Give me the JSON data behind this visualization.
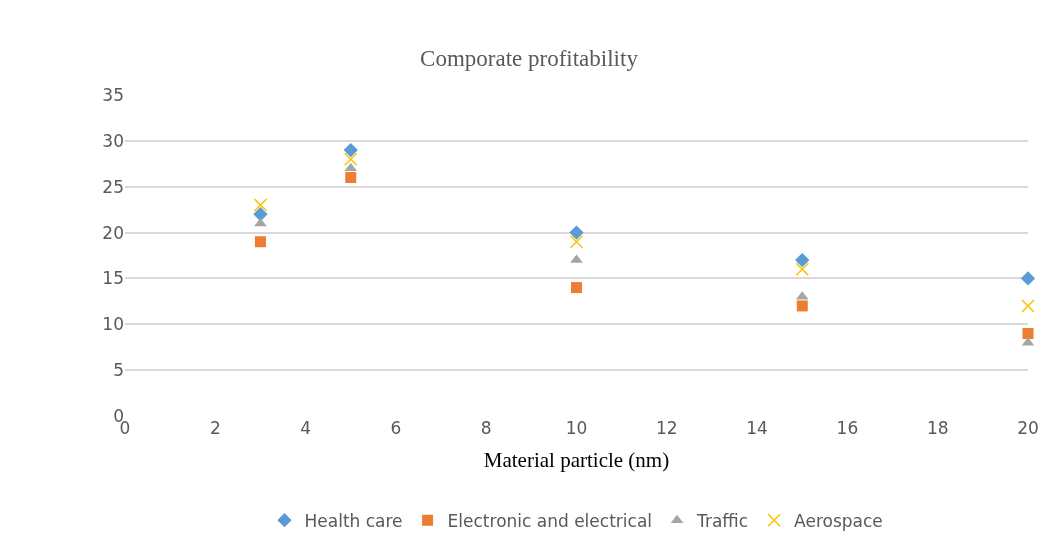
{
  "chart_data": {
    "type": "scatter",
    "title": "Comporate profitability",
    "xlabel": "Material particle (nm)",
    "x": [
      3,
      5,
      10,
      15,
      20
    ],
    "series": [
      {
        "name": "Health care",
        "color": "#5b9bd5",
        "marker": "diamond",
        "values": [
          22,
          29,
          20,
          17,
          15
        ]
      },
      {
        "name": "Electronic and electrical",
        "color": "#ed7d31",
        "marker": "square",
        "values": [
          19,
          26,
          14,
          12,
          9
        ]
      },
      {
        "name": "Traffic",
        "color": "#a5a5a5",
        "marker": "triangle",
        "values": [
          21,
          27,
          17,
          13,
          8
        ]
      },
      {
        "name": "Aerospace",
        "color": "#ffc000",
        "marker": "cross",
        "values": [
          23,
          28,
          19,
          16,
          12
        ]
      }
    ],
    "xlim": [
      0,
      20
    ],
    "xticks": [
      0,
      2,
      4,
      6,
      8,
      10,
      12,
      14,
      16,
      18,
      20
    ],
    "ylim": [
      0,
      35
    ],
    "yticks": [
      0,
      5,
      10,
      15,
      20,
      25,
      30,
      35
    ],
    "grid": "y",
    "legend": "bottom"
  }
}
